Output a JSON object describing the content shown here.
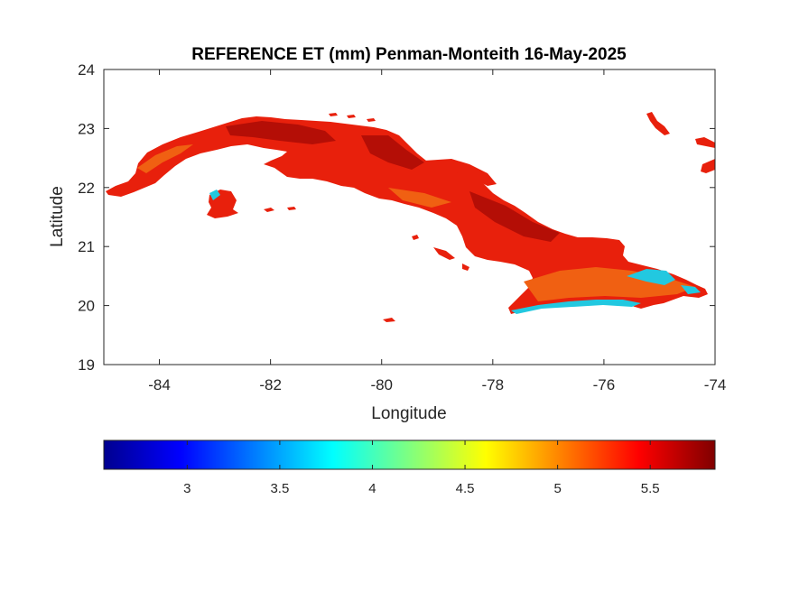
{
  "map": {
    "title": "REFERENCE ET (mm) Penman-Monteith 16-May-2025",
    "xlabel": "Longitude",
    "ylabel": "Latitude",
    "xlim": [
      -85,
      -74
    ],
    "ylim": [
      19,
      24
    ],
    "xticks": [
      -84,
      -82,
      -80,
      -78,
      -76,
      -74
    ],
    "yticks": [
      19,
      20,
      21,
      22,
      23,
      24
    ],
    "xtick_labels": [
      "-84",
      "-82",
      "-80",
      "-78",
      "-76",
      "-74"
    ],
    "ytick_labels": [
      "19",
      "20",
      "21",
      "22",
      "23",
      "24"
    ],
    "colormap": "jet",
    "region_color_main": "#e8200c",
    "region_color_dark": "#b40e06",
    "region_color_warm": "#f06012",
    "region_color_cool": "#22c8e0",
    "colorbar": {
      "range": [
        2.55,
        5.85
      ],
      "ticks": [
        3,
        3.5,
        4,
        4.5,
        5,
        5.5
      ],
      "tick_labels": [
        "3",
        "3.5",
        "4",
        "4.5",
        "5",
        "5.5"
      ]
    }
  }
}
